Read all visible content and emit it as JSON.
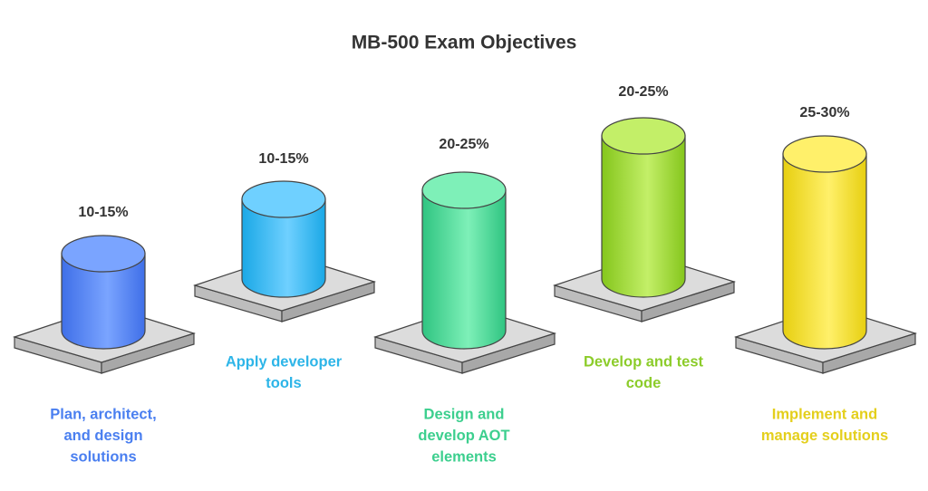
{
  "title": "MB-500 Exam Objectives",
  "items": [
    {
      "weight": "10-15%",
      "label_lines": [
        "Plan, architect,",
        "and design",
        "solutions"
      ]
    },
    {
      "weight": "10-15%",
      "label_lines": [
        "Apply developer",
        "tools"
      ]
    },
    {
      "weight": "20-25%",
      "label_lines": [
        "Design and",
        "develop AOT",
        "elements"
      ]
    },
    {
      "weight": "20-25%",
      "label_lines": [
        "Develop and test",
        "code"
      ]
    },
    {
      "weight": "25-30%",
      "label_lines": [
        "Implement and",
        "manage solutions"
      ]
    }
  ]
}
